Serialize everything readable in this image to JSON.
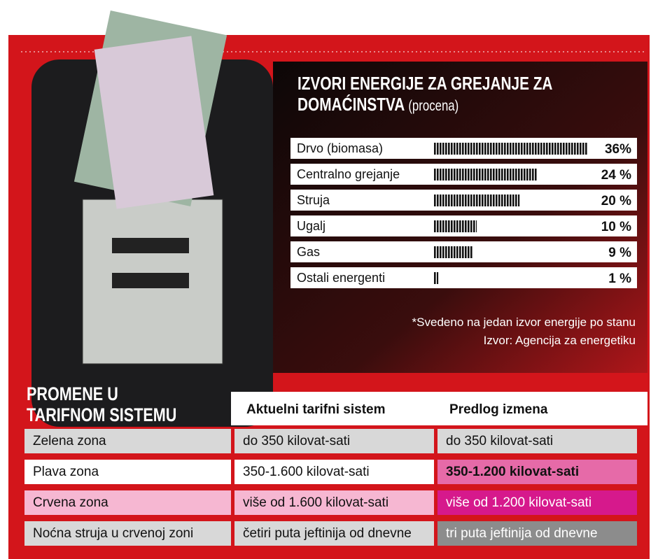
{
  "chart_data": {
    "type": "bar",
    "title": "IZVORI ENERGIJE ZA GREJANJE ZA DOMAĆINSTVA",
    "subtitle": "(procena)",
    "categories": [
      "Drvo (biomasa)",
      "Centralno grejanje",
      "Struja",
      "Ugalj",
      "Gas",
      "Ostali energenti"
    ],
    "values": [
      36,
      24,
      20,
      10,
      9,
      1
    ],
    "value_labels": [
      "36%",
      "24 %",
      "20 %",
      "10 %",
      "9 %",
      "1 %"
    ],
    "color": "#111111",
    "notes": [
      "*Svedeno na jedan izvor energije po stanu",
      "Izvor: Agencija za energetiku"
    ]
  },
  "table": {
    "title": "PROMENE U TARIFNOM SISTEMU",
    "headers": [
      "Aktuelni tarifni sistem",
      "Predlog izmena"
    ],
    "rows": [
      [
        "Zelena zona",
        "do 350 kilovat-sati",
        "do 350 kilovat-sati"
      ],
      [
        "Plava zona",
        "350-1.600 kilovat-sati",
        "350-1.200 kilovat-sati"
      ],
      [
        "Crvena zona",
        "više od 1.600 kilovat-sati",
        "više od 1.200 kilovat-sati"
      ],
      [
        "Noćna struja u crvenoj zoni",
        "četiri puta jeftinija od dnevne",
        "tri puta jeftinija od dnevne"
      ]
    ]
  }
}
